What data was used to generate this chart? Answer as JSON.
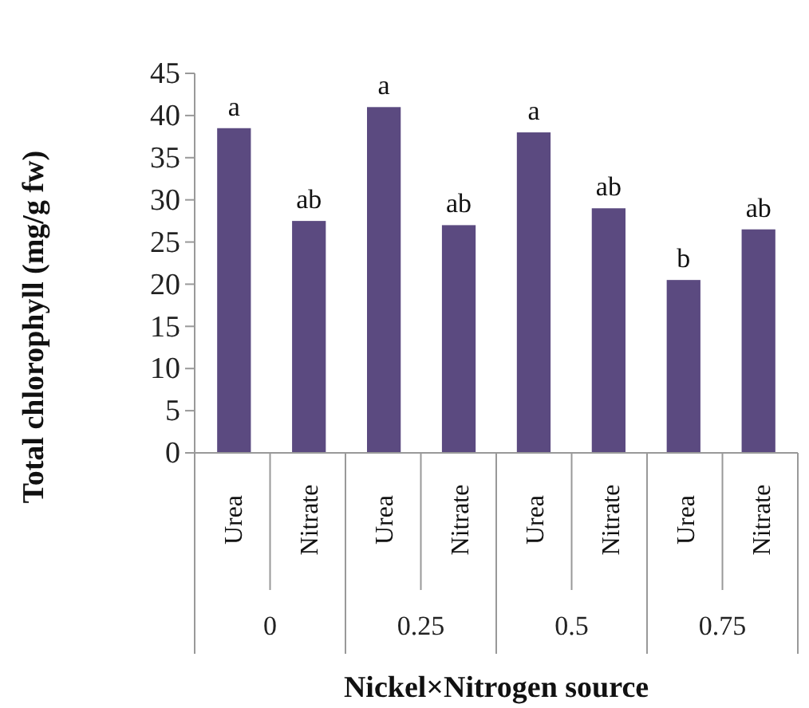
{
  "chart_data": {
    "type": "bar",
    "categories": [
      "Urea",
      "Nitrate",
      "Urea",
      "Nitrate",
      "Urea",
      "Nitrate",
      "Urea",
      "Nitrate"
    ],
    "values": [
      38.5,
      27.5,
      41,
      27,
      38,
      29,
      20.5,
      26.5
    ],
    "value_labels": [
      "a",
      "ab",
      "a",
      "ab",
      "a",
      "ab",
      "b",
      "ab"
    ],
    "color": "#5b4a80",
    "ylim": [
      0,
      45
    ],
    "yticks": [
      0,
      5,
      10,
      15,
      20,
      25,
      30,
      35,
      40,
      45
    ],
    "ylabel": "Total chlorophyll (mg/g fw)",
    "xlabel": "Nickel×Nitrogen source",
    "annotations": [
      "0",
      "0.25",
      "0.5",
      "0.75"
    ],
    "grid": false
  }
}
